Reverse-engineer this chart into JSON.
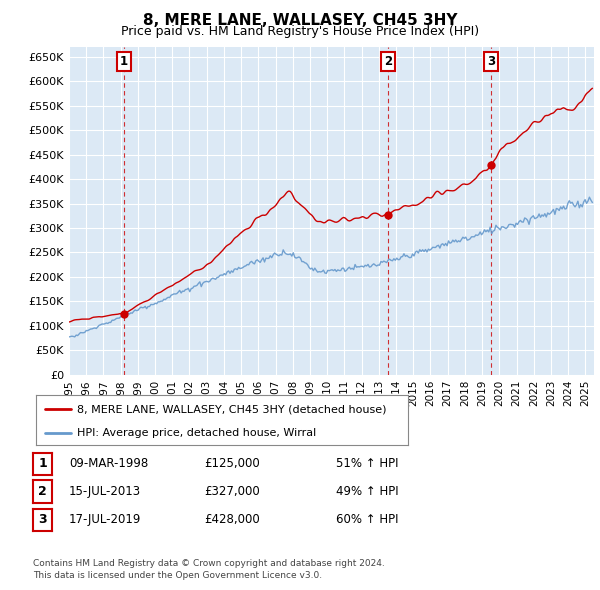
{
  "title": "8, MERE LANE, WALLASEY, CH45 3HY",
  "subtitle": "Price paid vs. HM Land Registry's House Price Index (HPI)",
  "plot_bg_color": "#dce9f5",
  "grid_color": "#ffffff",
  "ylim": [
    0,
    670000
  ],
  "yticks": [
    0,
    50000,
    100000,
    150000,
    200000,
    250000,
    300000,
    350000,
    400000,
    450000,
    500000,
    550000,
    600000,
    650000
  ],
  "ytick_labels": [
    "£0",
    "£50K",
    "£100K",
    "£150K",
    "£200K",
    "£250K",
    "£300K",
    "£350K",
    "£400K",
    "£450K",
    "£500K",
    "£550K",
    "£600K",
    "£650K"
  ],
  "red_line_label": "8, MERE LANE, WALLASEY, CH45 3HY (detached house)",
  "blue_line_label": "HPI: Average price, detached house, Wirral",
  "red_color": "#cc0000",
  "blue_color": "#6699cc",
  "sale_markers": [
    {
      "num": 1,
      "date_x": 1998.19,
      "price": 125000,
      "label": "1",
      "date_str": "09-MAR-1998",
      "price_str": "£125,000",
      "hpi_str": "51% ↑ HPI"
    },
    {
      "num": 2,
      "date_x": 2013.54,
      "price": 327000,
      "label": "2",
      "date_str": "15-JUL-2013",
      "price_str": "£327,000",
      "hpi_str": "49% ↑ HPI"
    },
    {
      "num": 3,
      "date_x": 2019.54,
      "price": 428000,
      "label": "3",
      "date_str": "17-JUL-2019",
      "price_str": "£428,000",
      "hpi_str": "60% ↑ HPI"
    }
  ],
  "footnote1": "Contains HM Land Registry data © Crown copyright and database right 2024.",
  "footnote2": "This data is licensed under the Open Government Licence v3.0.",
  "xlim": [
    1995,
    2025.5
  ],
  "xticks": [
    1995,
    1996,
    1997,
    1998,
    1999,
    2000,
    2001,
    2002,
    2003,
    2004,
    2005,
    2006,
    2007,
    2008,
    2009,
    2010,
    2011,
    2012,
    2013,
    2014,
    2015,
    2016,
    2017,
    2018,
    2019,
    2020,
    2021,
    2022,
    2023,
    2024,
    2025
  ]
}
